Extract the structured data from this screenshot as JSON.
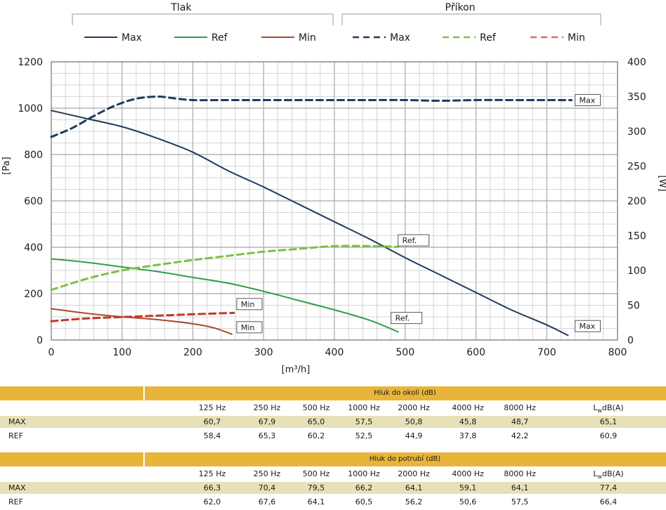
{
  "chart_data": {
    "type": "line",
    "group_labels": {
      "pressure": "Tlak",
      "power": "Příkon"
    },
    "legend": [
      {
        "name": "Max",
        "group": "pressure",
        "color": "#1f3a5c",
        "dash": false
      },
      {
        "name": "Ref",
        "group": "pressure",
        "color": "#2e9e48",
        "dash": false
      },
      {
        "name": "Min",
        "group": "pressure",
        "color": "#a64b2a",
        "dash": false
      },
      {
        "name": "Max",
        "group": "power",
        "color": "#1f3a5c",
        "dash": true
      },
      {
        "name": "Ref",
        "group": "power",
        "color": "#7dc043",
        "dash": true
      },
      {
        "name": "Min",
        "group": "power",
        "color": "#e06a5c",
        "dash": true
      }
    ],
    "xlabel": "[m³/h]",
    "ylabel": "[Pa]",
    "y2label": "[W]",
    "xlim": [
      0,
      800
    ],
    "ylim": [
      0,
      1200
    ],
    "y2lim": [
      0,
      400
    ],
    "x_ticks": [
      "0",
      "100",
      "200",
      "300",
      "400",
      "500",
      "600",
      "700",
      "800"
    ],
    "y_ticks": [
      "0",
      "200",
      "400",
      "600",
      "800",
      "1000",
      "1200"
    ],
    "y2_ticks": [
      "0",
      "50",
      "100",
      "150",
      "200",
      "250",
      "300",
      "350",
      "400"
    ],
    "grid": true,
    "series": [
      {
        "id": "p_max",
        "axis": "left",
        "color": "#1f3a5c",
        "dash": false,
        "width": 2,
        "x": [
          0,
          50,
          100,
          150,
          200,
          250,
          300,
          350,
          400,
          450,
          500,
          550,
          600,
          650,
          700,
          730
        ],
        "y": [
          990,
          955,
          920,
          870,
          810,
          730,
          660,
          585,
          510,
          435,
          355,
          280,
          205,
          130,
          65,
          20
        ]
      },
      {
        "id": "p_ref",
        "axis": "left",
        "color": "#2e9e48",
        "dash": false,
        "width": 2,
        "x": [
          0,
          50,
          100,
          150,
          200,
          250,
          300,
          350,
          400,
          450,
          490
        ],
        "y": [
          350,
          335,
          315,
          295,
          270,
          245,
          210,
          170,
          130,
          85,
          35
        ]
      },
      {
        "id": "p_min",
        "axis": "left",
        "color": "#a64b2a",
        "dash": false,
        "width": 2,
        "x": [
          0,
          50,
          100,
          150,
          200,
          230,
          255
        ],
        "y": [
          135,
          115,
          100,
          88,
          70,
          52,
          25
        ]
      },
      {
        "id": "w_max",
        "axis": "right",
        "color": "#1f3a5c",
        "dash": true,
        "width": 3,
        "x": [
          0,
          30,
          60,
          90,
          120,
          150,
          170,
          200,
          250,
          300,
          350,
          400,
          450,
          500,
          550,
          600,
          650,
          700,
          735
        ],
        "y": [
          292,
          305,
          322,
          337,
          347,
          350,
          348,
          345,
          345,
          345,
          345,
          345,
          345,
          345,
          344,
          345,
          345,
          345,
          345
        ]
      },
      {
        "id": "w_ref",
        "axis": "right",
        "color": "#7dc043",
        "dash": true,
        "width": 3,
        "x": [
          0,
          50,
          100,
          150,
          200,
          250,
          300,
          350,
          400,
          450,
          490
        ],
        "y": [
          72,
          88,
          100,
          108,
          115,
          121,
          127,
          131,
          135,
          135,
          134
        ]
      },
      {
        "id": "w_min",
        "axis": "right",
        "color": "#e06a5c",
        "dash": true,
        "width": 3,
        "x": [
          0,
          50,
          100,
          150,
          200,
          258
        ],
        "y": [
          27,
          31,
          33,
          35,
          37,
          39
        ],
        "overlay_color": "#c0392b"
      }
    ],
    "annotations": [
      {
        "text": "Max",
        "x": 740,
        "y2": 345
      },
      {
        "text": "Max",
        "x": 740,
        "y": 60
      },
      {
        "text": "Ref.",
        "x": 490,
        "y": 430
      },
      {
        "text": "Ref.",
        "x": 480,
        "y": 95
      },
      {
        "text": "Min",
        "x": 262,
        "y": 155
      },
      {
        "text": "Min",
        "x": 262,
        "y": 55
      }
    ]
  },
  "tables": [
    {
      "title": "Hluk do okolí (dB)",
      "headers": [
        "125 Hz",
        "250 Hz",
        "500 Hz",
        "1000 Hz",
        "2000 Hz",
        "4000 Hz",
        "8000 Hz"
      ],
      "total_header_main": "L",
      "total_header_sub": "w",
      "total_header_unit": "dB(A)",
      "rows": [
        {
          "label": "MAX",
          "values": [
            "60,7",
            "67,9",
            "65,0",
            "57,5",
            "50,8",
            "45,8",
            "48,7"
          ],
          "total": "65,1"
        },
        {
          "label": "REF",
          "values": [
            "58,4",
            "65,3",
            "60,2",
            "52,5",
            "44,9",
            "37,8",
            "42,2"
          ],
          "total": "60,9"
        }
      ]
    },
    {
      "title": "Hluk do potrubí (dB)",
      "headers": [
        "125 Hz",
        "250 Hz",
        "500 Hz",
        "1000 Hz",
        "2000 Hz",
        "4000 Hz",
        "8000 Hz"
      ],
      "total_header_main": "L",
      "total_header_sub": "w",
      "total_header_unit": "dB(A)",
      "rows": [
        {
          "label": "MAX",
          "values": [
            "66,3",
            "70,4",
            "79,5",
            "66,2",
            "64,1",
            "59,1",
            "64,1"
          ],
          "total": "77,4"
        },
        {
          "label": "REF",
          "values": [
            "62,0",
            "67,6",
            "64,1",
            "60,5",
            "56,2",
            "50,6",
            "57,5"
          ],
          "total": "66,4"
        }
      ]
    }
  ]
}
